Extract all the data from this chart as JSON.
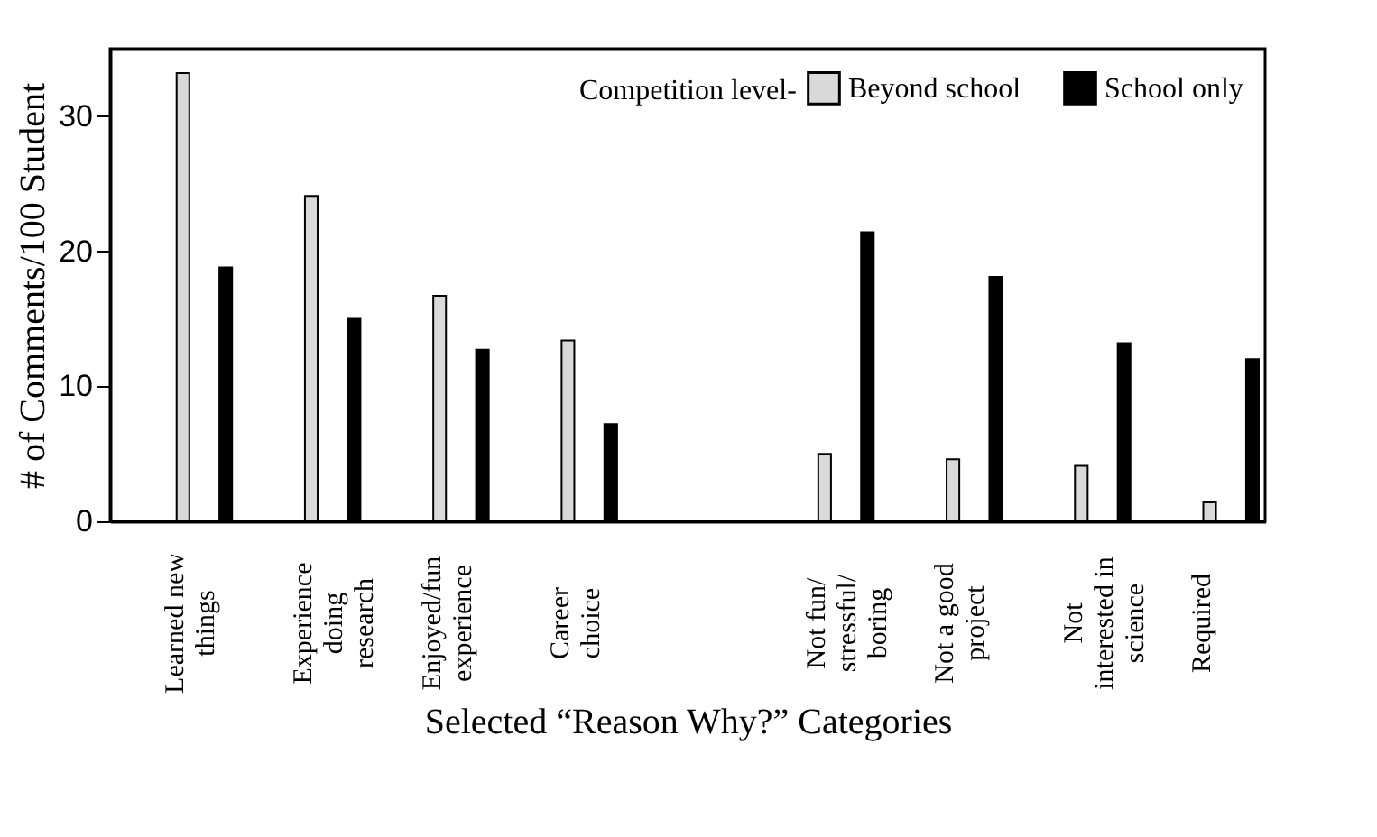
{
  "chart_data": {
    "type": "bar",
    "xlabel": "Selected “Reason Why?” Categories",
    "ylabel": "# of Comments/100 Student",
    "legend_title": "Competition level-",
    "legend": "top right",
    "categories": [
      "Learned new\nthings",
      "Experience\ndoing\nresearch",
      "Enjoyed/fun\nexperience",
      "Career\nchoice",
      null,
      "Not fun/\nstressful/\nboring",
      "Not a good\nproject",
      "Not\ninterested in\nscience",
      "Required"
    ],
    "series": [
      {
        "name": "Beyond school",
        "color": "#d9d9d9",
        "values": [
          33.2,
          24.1,
          16.7,
          13.4,
          null,
          5.0,
          4.6,
          4.1,
          1.4
        ]
      },
      {
        "name": "School only",
        "color": "#000000",
        "values": [
          18.8,
          15.0,
          12.7,
          7.2,
          null,
          21.4,
          18.1,
          13.2,
          12.0
        ]
      }
    ],
    "ylim": [
      0,
      35
    ],
    "yticks": [
      0,
      10,
      20,
      30
    ],
    "grid": false
  }
}
